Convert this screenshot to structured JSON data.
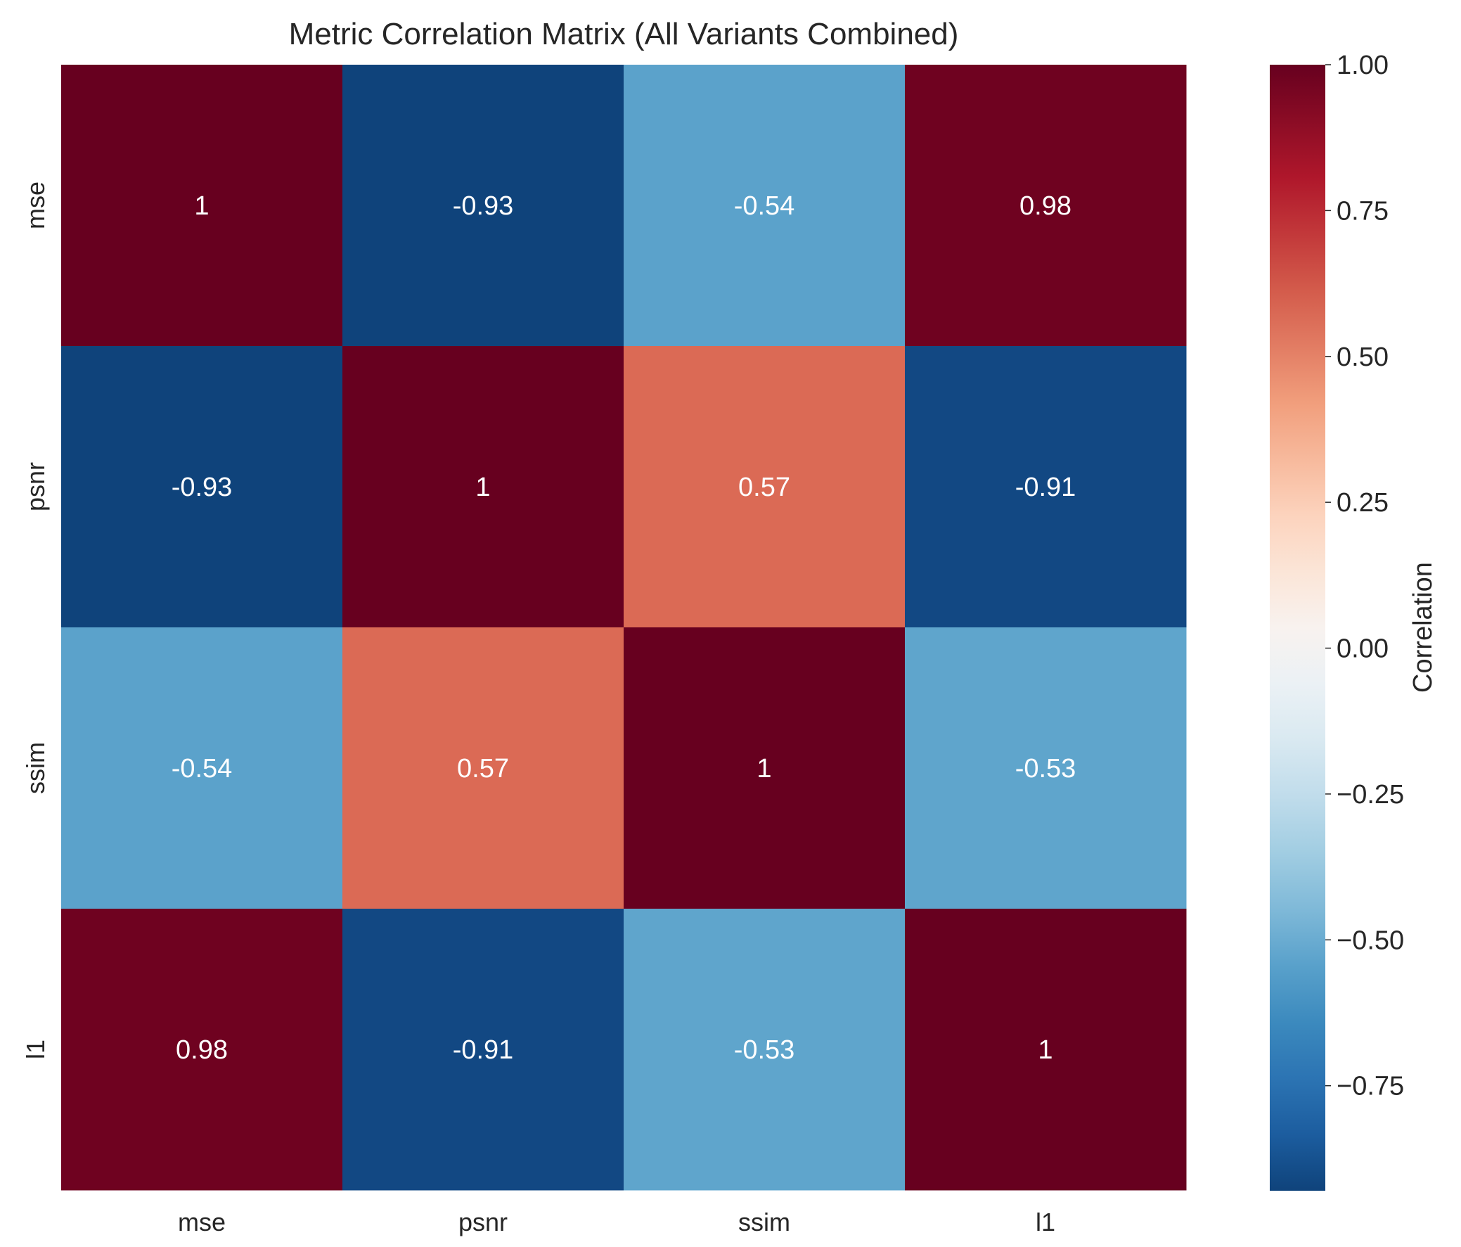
{
  "chart_data": {
    "type": "heatmap",
    "title": "Metric Correlation Matrix (All Variants Combined)",
    "x_categories": [
      "mse",
      "psnr",
      "ssim",
      "l1"
    ],
    "y_categories": [
      "mse",
      "psnr",
      "ssim",
      "l1"
    ],
    "values": [
      [
        1.0,
        -0.93,
        -0.54,
        0.98
      ],
      [
        -0.93,
        1.0,
        0.57,
        -0.91
      ],
      [
        -0.54,
        0.57,
        1.0,
        -0.53
      ],
      [
        0.98,
        -0.91,
        -0.53,
        1.0
      ]
    ],
    "annotations": [
      [
        "1",
        "-0.93",
        "-0.54",
        "0.98"
      ],
      [
        "-0.93",
        "1",
        "0.57",
        "-0.91"
      ],
      [
        "-0.54",
        "0.57",
        "1",
        "-0.53"
      ],
      [
        "0.98",
        "-0.91",
        "-0.53",
        "1"
      ]
    ],
    "colormap": "RdBu_r",
    "colorbar": {
      "label": "Correlation",
      "range": [
        -0.93,
        1.0
      ],
      "ticks": [
        1.0,
        0.75,
        0.5,
        0.25,
        0.0,
        -0.25,
        -0.5,
        -0.75
      ],
      "tick_labels": [
        "1.00",
        "0.75",
        "0.50",
        "0.25",
        "0.00",
        "−0.25",
        "−0.50",
        "−0.75"
      ],
      "position": "right"
    },
    "grid": false
  }
}
